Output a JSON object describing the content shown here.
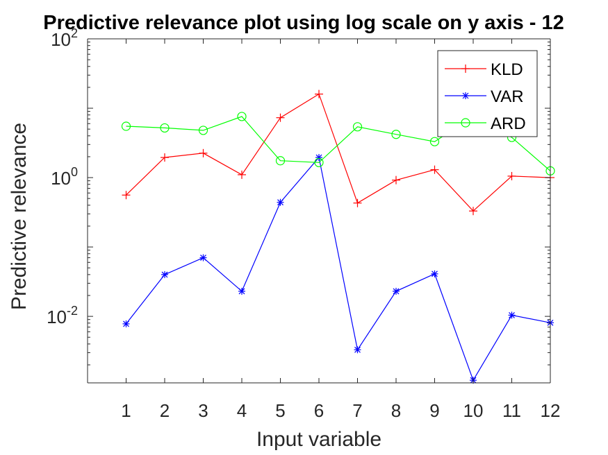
{
  "chart_data": {
    "type": "line",
    "title": "Predictive relevance plot using log scale on y axis - 12",
    "xlabel": "Input variable",
    "ylabel": "Predictive relevance",
    "yscale": "log",
    "ylim": [
      0.0011,
      100
    ],
    "xlim": [
      0,
      12
    ],
    "x": [
      1,
      2,
      3,
      4,
      5,
      6,
      7,
      8,
      9,
      10,
      11,
      12
    ],
    "x_tick_labels": [
      "1",
      "2",
      "3",
      "4",
      "5",
      "6",
      "7",
      "8",
      "9",
      "10",
      "11",
      "12"
    ],
    "y_ticks": [
      {
        "value": 0.01,
        "base": "10",
        "exp": "-2"
      },
      {
        "value": 1,
        "base": "10",
        "exp": "0"
      },
      {
        "value": 100,
        "base": "10",
        "exp": "2"
      }
    ],
    "grid": false,
    "legend_position": "top-right",
    "series": [
      {
        "name": "KLD",
        "color": "#ff0000",
        "marker": "plus",
        "values": [
          0.56,
          1.95,
          2.25,
          1.1,
          7.3,
          16,
          0.43,
          0.92,
          1.3,
          0.33,
          1.05,
          1.0
        ]
      },
      {
        "name": "VAR",
        "color": "#0000ff",
        "marker": "asterisk",
        "values": [
          0.0078,
          0.04,
          0.07,
          0.023,
          0.44,
          1.95,
          0.0033,
          0.023,
          0.041,
          0.0012,
          0.0104,
          0.0081
        ]
      },
      {
        "name": "ARD",
        "color": "#00ff00",
        "marker": "circle",
        "values": [
          5.5,
          5.2,
          4.8,
          7.6,
          1.75,
          1.65,
          5.4,
          4.2,
          3.3,
          7.6,
          3.8,
          1.25
        ]
      }
    ]
  }
}
